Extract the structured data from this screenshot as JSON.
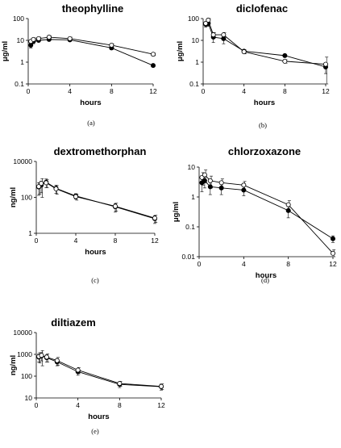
{
  "chart_data": [
    {
      "type": "line",
      "panel_label": "(a)",
      "title": "theophylline",
      "xlabel": "hours",
      "ylabel": "μg/ml",
      "yscale": "log",
      "ylim": [
        0.1,
        100
      ],
      "xlim": [
        0,
        12
      ],
      "xticks": [
        "0",
        "4",
        "8",
        "12"
      ],
      "yticks": [
        "0.1",
        "1",
        "10",
        "100"
      ],
      "series": [
        {
          "marker": "filled-circle",
          "x": [
            0.25,
            0.5,
            1,
            2,
            4,
            8,
            12
          ],
          "y": [
            6,
            9,
            10,
            11,
            10.5,
            4.5,
            0.7
          ],
          "err": [
            1.5,
            2,
            1.5,
            1.5,
            1.5,
            0.8,
            0.1
          ]
        },
        {
          "marker": "open-circle",
          "x": [
            0.25,
            0.5,
            1,
            2,
            4,
            8,
            12
          ],
          "y": [
            9,
            11,
            12,
            14,
            12,
            6,
            2.3
          ],
          "err": [
            2,
            2,
            2,
            2,
            2,
            1,
            0.3
          ]
        }
      ]
    },
    {
      "type": "line",
      "panel_label": "(b)",
      "title": "diclofenac",
      "xlabel": "hours",
      "ylabel": "μg/ml",
      "yscale": "log",
      "ylim": [
        0.1,
        100
      ],
      "xlim": [
        0,
        12
      ],
      "xticks": [
        "0",
        "4",
        "8",
        "12"
      ],
      "yticks": [
        "0.1",
        "1",
        "10",
        "100"
      ],
      "series": [
        {
          "marker": "filled-circle",
          "x": [
            0.25,
            0.5,
            1,
            2,
            4,
            8,
            12
          ],
          "y": [
            55,
            60,
            14,
            12,
            3.2,
            2.0,
            0.6
          ],
          "err": [
            15,
            15,
            6,
            5,
            0.6,
            0.3,
            0.3
          ]
        },
        {
          "marker": "open-circle",
          "x": [
            0.25,
            0.5,
            1,
            2,
            4,
            8,
            12
          ],
          "y": [
            60,
            85,
            18,
            18,
            3.0,
            1.1,
            0.8
          ],
          "err": [
            15,
            20,
            5,
            5,
            0.6,
            0.2,
            0.9
          ]
        }
      ]
    },
    {
      "type": "line",
      "panel_label": "(c)",
      "title": "dextromethorphan",
      "xlabel": "hours",
      "ylabel": "ng/ml",
      "yscale": "log",
      "ylim": [
        1,
        10000
      ],
      "xlim": [
        0,
        12
      ],
      "xticks": [
        "0",
        "4",
        "8",
        "12"
      ],
      "yticks": [
        "1",
        "100",
        "10000"
      ],
      "series": [
        {
          "marker": "filled-circle",
          "x": [
            0.25,
            0.5,
            1,
            2,
            4,
            8,
            12
          ],
          "y": [
            380,
            480,
            700,
            320,
            120,
            30,
            6.5
          ],
          "err": [
            250,
            300,
            350,
            150,
            40,
            15,
            3
          ]
        },
        {
          "marker": "open-circle",
          "x": [
            0.25,
            0.5,
            1,
            2,
            4,
            8,
            12
          ],
          "y": [
            400,
            600,
            650,
            300,
            110,
            32,
            7
          ],
          "err": [
            250,
            500,
            300,
            150,
            40,
            15,
            3
          ]
        }
      ]
    },
    {
      "type": "line",
      "panel_label": "(d)",
      "title": "chlorzoxazone",
      "xlabel": "hours",
      "ylabel": "μg/ml",
      "yscale": "log",
      "ylim": [
        0.01,
        10
      ],
      "xlim": [
        0,
        12
      ],
      "xticks": [
        "0",
        "4",
        "8",
        "12"
      ],
      "yticks": [
        "0.01",
        "0.1",
        "1",
        "10"
      ],
      "series": [
        {
          "marker": "filled-circle",
          "x": [
            0.25,
            0.5,
            1,
            2,
            4,
            8,
            12
          ],
          "y": [
            3.0,
            3.5,
            2.2,
            2.0,
            1.7,
            0.35,
            0.04
          ],
          "err": [
            1.5,
            1.5,
            1.0,
            0.8,
            0.6,
            0.15,
            0.01
          ]
        },
        {
          "marker": "open-circle",
          "x": [
            0.25,
            0.5,
            1,
            2,
            4,
            8,
            12
          ],
          "y": [
            4.5,
            5.5,
            3.5,
            3.0,
            2.5,
            0.55,
            0.013
          ],
          "err": [
            2.0,
            2.5,
            1.5,
            1.0,
            0.8,
            0.2,
            0.004
          ]
        }
      ]
    },
    {
      "type": "line",
      "panel_label": "(e)",
      "title": "diltiazem",
      "xlabel": "hours",
      "ylabel": "ng/ml",
      "yscale": "log",
      "ylim": [
        10,
        10000
      ],
      "xlim": [
        0,
        12
      ],
      "xticks": [
        "0",
        "4",
        "8",
        "12"
      ],
      "yticks": [
        "10",
        "100",
        "1000",
        "10000"
      ],
      "series": [
        {
          "marker": "filled-circle",
          "x": [
            0.25,
            0.5,
            1,
            2,
            4,
            8,
            12
          ],
          "y": [
            750,
            850,
            700,
            450,
            160,
            42,
            33
          ],
          "err": [
            300,
            350,
            250,
            150,
            50,
            12,
            10
          ]
        },
        {
          "marker": "open-circle",
          "x": [
            0.25,
            0.5,
            1,
            2,
            4,
            8,
            12
          ],
          "y": [
            800,
            900,
            750,
            520,
            190,
            46,
            34
          ],
          "err": [
            400,
            600,
            300,
            200,
            60,
            12,
            10
          ]
        }
      ]
    }
  ]
}
